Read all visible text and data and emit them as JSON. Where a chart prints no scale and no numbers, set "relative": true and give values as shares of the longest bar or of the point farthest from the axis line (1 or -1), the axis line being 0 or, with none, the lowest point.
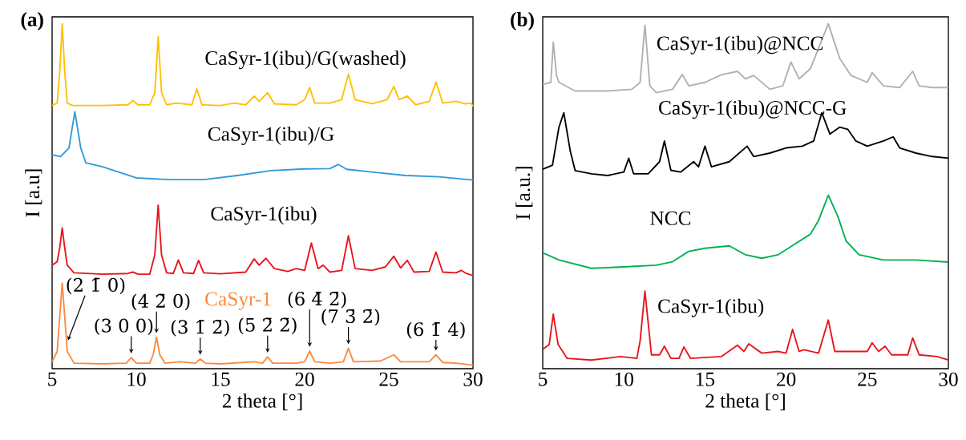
{
  "chart_data": [
    {
      "type": "line",
      "title": "(a)",
      "xlabel": "2 theta [°]",
      "ylabel": "I [a.u]",
      "relative": true,
      "xlim": [
        5,
        30
      ],
      "xticks": [
        5,
        10,
        15,
        20,
        25,
        30
      ],
      "annotations": [
        {
          "text": "(2 1̄ 0)",
          "x": 5.75,
          "y": 0.15
        },
        {
          "text": "(3 0 0)",
          "x": 9.7,
          "y": 0.032
        },
        {
          "text": "(4 2̄ 0)",
          "x": 11.2,
          "y": 0.091
        },
        {
          "text": "(3 1̄ 2̄)",
          "x": 13.8,
          "y": 0.028
        },
        {
          "text": "(5 2̄ 2̄)",
          "x": 17.8,
          "y": 0.034
        },
        {
          "text": "(6 4̄ 2̄)",
          "x": 20.3,
          "y": 0.051
        },
        {
          "text": "(7 3̄ 2̄)",
          "x": 22.6,
          "y": 0.059
        },
        {
          "text": "(6 1̄ 4)",
          "x": 27.8,
          "y": 0.04
        }
      ],
      "series": [
        {
          "name": "CaSyr-1(ibu)/G(washed)",
          "color": "#ffc000",
          "x": [
            5.0,
            5.3,
            5.45,
            5.6,
            5.75,
            5.9,
            6.2,
            8,
            9.5,
            9.8,
            10.1,
            10.8,
            11.1,
            11.3,
            11.5,
            11.8,
            12.4,
            13.3,
            13.6,
            13.9,
            15,
            15.8,
            16.5,
            17.0,
            17.3,
            17.8,
            18.2,
            19.5,
            20.0,
            20.3,
            20.6,
            21.5,
            22.2,
            22.6,
            23.0,
            24.0,
            24.9,
            25.3,
            25.6,
            26.1,
            26.6,
            27.4,
            27.8,
            28.2,
            29.0,
            29.5,
            29.9,
            30.0
          ],
          "values": [
            0.763,
            0.77,
            0.86,
            1.0,
            0.86,
            0.77,
            0.763,
            0.763,
            0.765,
            0.777,
            0.765,
            0.765,
            0.8,
            0.963,
            0.8,
            0.765,
            0.77,
            0.765,
            0.811,
            0.765,
            0.763,
            0.77,
            0.765,
            0.79,
            0.775,
            0.8,
            0.768,
            0.765,
            0.78,
            0.815,
            0.77,
            0.77,
            0.78,
            0.854,
            0.78,
            0.768,
            0.78,
            0.818,
            0.78,
            0.79,
            0.765,
            0.775,
            0.831,
            0.77,
            0.775,
            0.768,
            0.77,
            0.76
          ]
        },
        {
          "name": "CaSyr-1(ibu)/G",
          "color": "#2e9ad8",
          "x": [
            5.0,
            5.5,
            6.0,
            6.2,
            6.35,
            6.5,
            6.7,
            7.0,
            8,
            10,
            12,
            14,
            16,
            18,
            20,
            21.5,
            22.0,
            22.5,
            24,
            26,
            28,
            30
          ],
          "values": [
            0.62,
            0.615,
            0.64,
            0.7,
            0.745,
            0.7,
            0.64,
            0.597,
            0.585,
            0.553,
            0.548,
            0.548,
            0.56,
            0.574,
            0.579,
            0.58,
            0.592,
            0.578,
            0.57,
            0.56,
            0.556,
            0.547
          ]
        },
        {
          "name": "CaSyr-1(ibu)",
          "color": "#e8141c",
          "x": [
            5.0,
            5.3,
            5.45,
            5.6,
            5.75,
            5.9,
            6.3,
            8,
            9.5,
            9.8,
            10.1,
            10.8,
            11.1,
            11.3,
            11.5,
            11.8,
            12.2,
            12.5,
            12.8,
            13.4,
            13.7,
            14.0,
            15,
            16.5,
            17.0,
            17.3,
            17.7,
            18.2,
            19.0,
            19.5,
            20.0,
            20.4,
            20.8,
            21.1,
            21.5,
            22.2,
            22.6,
            23.0,
            24.0,
            24.8,
            25.3,
            25.7,
            26.1,
            26.5,
            27.4,
            27.8,
            28.2,
            29.0,
            29.3,
            29.6,
            30.0
          ],
          "values": [
            0.3,
            0.31,
            0.35,
            0.408,
            0.35,
            0.3,
            0.278,
            0.274,
            0.276,
            0.28,
            0.274,
            0.274,
            0.33,
            0.474,
            0.33,
            0.278,
            0.276,
            0.315,
            0.278,
            0.276,
            0.314,
            0.278,
            0.275,
            0.28,
            0.318,
            0.3,
            0.32,
            0.29,
            0.282,
            0.29,
            0.285,
            0.364,
            0.29,
            0.3,
            0.28,
            0.285,
            0.385,
            0.29,
            0.285,
            0.295,
            0.326,
            0.292,
            0.314,
            0.28,
            0.282,
            0.338,
            0.28,
            0.278,
            0.285,
            0.276,
            0.27
          ]
        },
        {
          "name": "CaSyr-1",
          "color": "#fb8a3c",
          "x": [
            5.0,
            5.3,
            5.45,
            5.6,
            5.75,
            5.9,
            6.3,
            8,
            9.4,
            9.7,
            10.0,
            10.8,
            11.0,
            11.2,
            11.4,
            11.7,
            12.6,
            13.5,
            13.8,
            14.1,
            15,
            17.0,
            17.5,
            17.8,
            18.1,
            19.5,
            20.0,
            20.3,
            20.6,
            21.5,
            22.3,
            22.6,
            22.9,
            24.5,
            25.3,
            25.7,
            27.4,
            27.8,
            28.2,
            29.0,
            30.0
          ],
          "values": [
            0.02,
            0.05,
            0.15,
            0.248,
            0.15,
            0.05,
            0.016,
            0.014,
            0.016,
            0.032,
            0.016,
            0.016,
            0.04,
            0.091,
            0.04,
            0.016,
            0.02,
            0.016,
            0.028,
            0.016,
            0.014,
            0.02,
            0.016,
            0.034,
            0.016,
            0.016,
            0.02,
            0.051,
            0.02,
            0.016,
            0.02,
            0.059,
            0.02,
            0.022,
            0.04,
            0.02,
            0.02,
            0.04,
            0.018,
            0.016,
            0.01
          ]
        }
      ]
    },
    {
      "type": "line",
      "title": "(b)",
      "xlabel": "2 theta [°]",
      "ylabel": "I [a.u.]",
      "relative": true,
      "xlim": [
        5,
        30
      ],
      "xticks": [
        5,
        10,
        15,
        20,
        25,
        30
      ],
      "series": [
        {
          "name": "CaSyr-1(ibu)@NCC",
          "color": "#b0b0b0",
          "x": [
            5.0,
            5.5,
            5.65,
            5.85,
            6,
            7,
            9,
            10.5,
            11.0,
            11.3,
            11.6,
            12,
            13,
            13.6,
            14,
            15,
            16,
            17.0,
            17.5,
            18,
            19,
            19.8,
            20.3,
            20.8,
            21.5,
            22,
            22.6,
            23.3,
            24,
            25,
            25.3,
            26,
            27,
            27.8,
            28.2,
            29,
            30
          ],
          "values": [
            0.824,
            0.83,
            0.947,
            0.85,
            0.83,
            0.805,
            0.805,
            0.81,
            0.83,
            0.996,
            0.82,
            0.8,
            0.81,
            0.853,
            0.82,
            0.83,
            0.852,
            0.862,
            0.84,
            0.85,
            0.81,
            0.82,
            0.889,
            0.84,
            0.87,
            0.929,
            1.0,
            0.9,
            0.85,
            0.83,
            0.858,
            0.82,
            0.815,
            0.862,
            0.82,
            0.815,
            0.815
          ]
        },
        {
          "name": "CaSyr-1(ibu)@NCC-G",
          "color": "#000000",
          "x": [
            5.0,
            5.6,
            6.0,
            6.3,
            6.7,
            7,
            8,
            9,
            10.0,
            10.3,
            10.6,
            11.5,
            12.2,
            12.5,
            12.9,
            13.5,
            14.3,
            14.6,
            15.0,
            15.4,
            16.5,
            17.6,
            18,
            19,
            20,
            21,
            21.7,
            22.2,
            22.7,
            23.3,
            23.8,
            24.3,
            25,
            26,
            26.6,
            27,
            28,
            29,
            30
          ],
          "values": [
            0.578,
            0.59,
            0.7,
            0.742,
            0.63,
            0.574,
            0.565,
            0.56,
            0.57,
            0.61,
            0.565,
            0.565,
            0.6,
            0.66,
            0.575,
            0.57,
            0.6,
            0.585,
            0.645,
            0.585,
            0.6,
            0.645,
            0.615,
            0.625,
            0.64,
            0.645,
            0.66,
            0.742,
            0.68,
            0.7,
            0.694,
            0.66,
            0.645,
            0.66,
            0.672,
            0.64,
            0.625,
            0.615,
            0.61
          ]
        },
        {
          "name": "NCC",
          "color": "#00b050",
          "x": [
            5.0,
            6,
            8,
            10,
            12,
            13,
            14,
            15,
            16.5,
            17.5,
            18.5,
            19.5,
            20.5,
            21.5,
            22.0,
            22.6,
            23.2,
            23.7,
            24.5,
            26,
            28,
            30
          ],
          "values": [
            0.336,
            0.315,
            0.291,
            0.295,
            0.3,
            0.31,
            0.34,
            0.349,
            0.356,
            0.33,
            0.32,
            0.33,
            0.36,
            0.39,
            0.43,
            0.503,
            0.44,
            0.37,
            0.33,
            0.315,
            0.315,
            0.309
          ]
        },
        {
          "name": "CaSyr-1(ibu)",
          "color": "#e8141c",
          "x": [
            5.0,
            5.4,
            5.65,
            5.95,
            6.5,
            8,
            9.8,
            10.8,
            11.0,
            11.3,
            11.7,
            12.2,
            12.5,
            12.9,
            13.4,
            13.7,
            14.1,
            16,
            17.0,
            17.4,
            17.7,
            18.5,
            19.5,
            20.0,
            20.4,
            20.8,
            21.1,
            22.0,
            22.6,
            23.0,
            24,
            25.0,
            25.3,
            25.7,
            26.1,
            26.5,
            27.5,
            27.8,
            28.2,
            29.3,
            30
          ],
          "values": [
            0.056,
            0.07,
            0.158,
            0.07,
            0.03,
            0.025,
            0.035,
            0.03,
            0.08,
            0.225,
            0.04,
            0.04,
            0.065,
            0.03,
            0.03,
            0.063,
            0.03,
            0.035,
            0.068,
            0.05,
            0.072,
            0.045,
            0.05,
            0.045,
            0.114,
            0.05,
            0.055,
            0.045,
            0.141,
            0.05,
            0.05,
            0.05,
            0.075,
            0.05,
            0.065,
            0.04,
            0.04,
            0.089,
            0.04,
            0.035,
            0.025
          ]
        }
      ]
    }
  ]
}
